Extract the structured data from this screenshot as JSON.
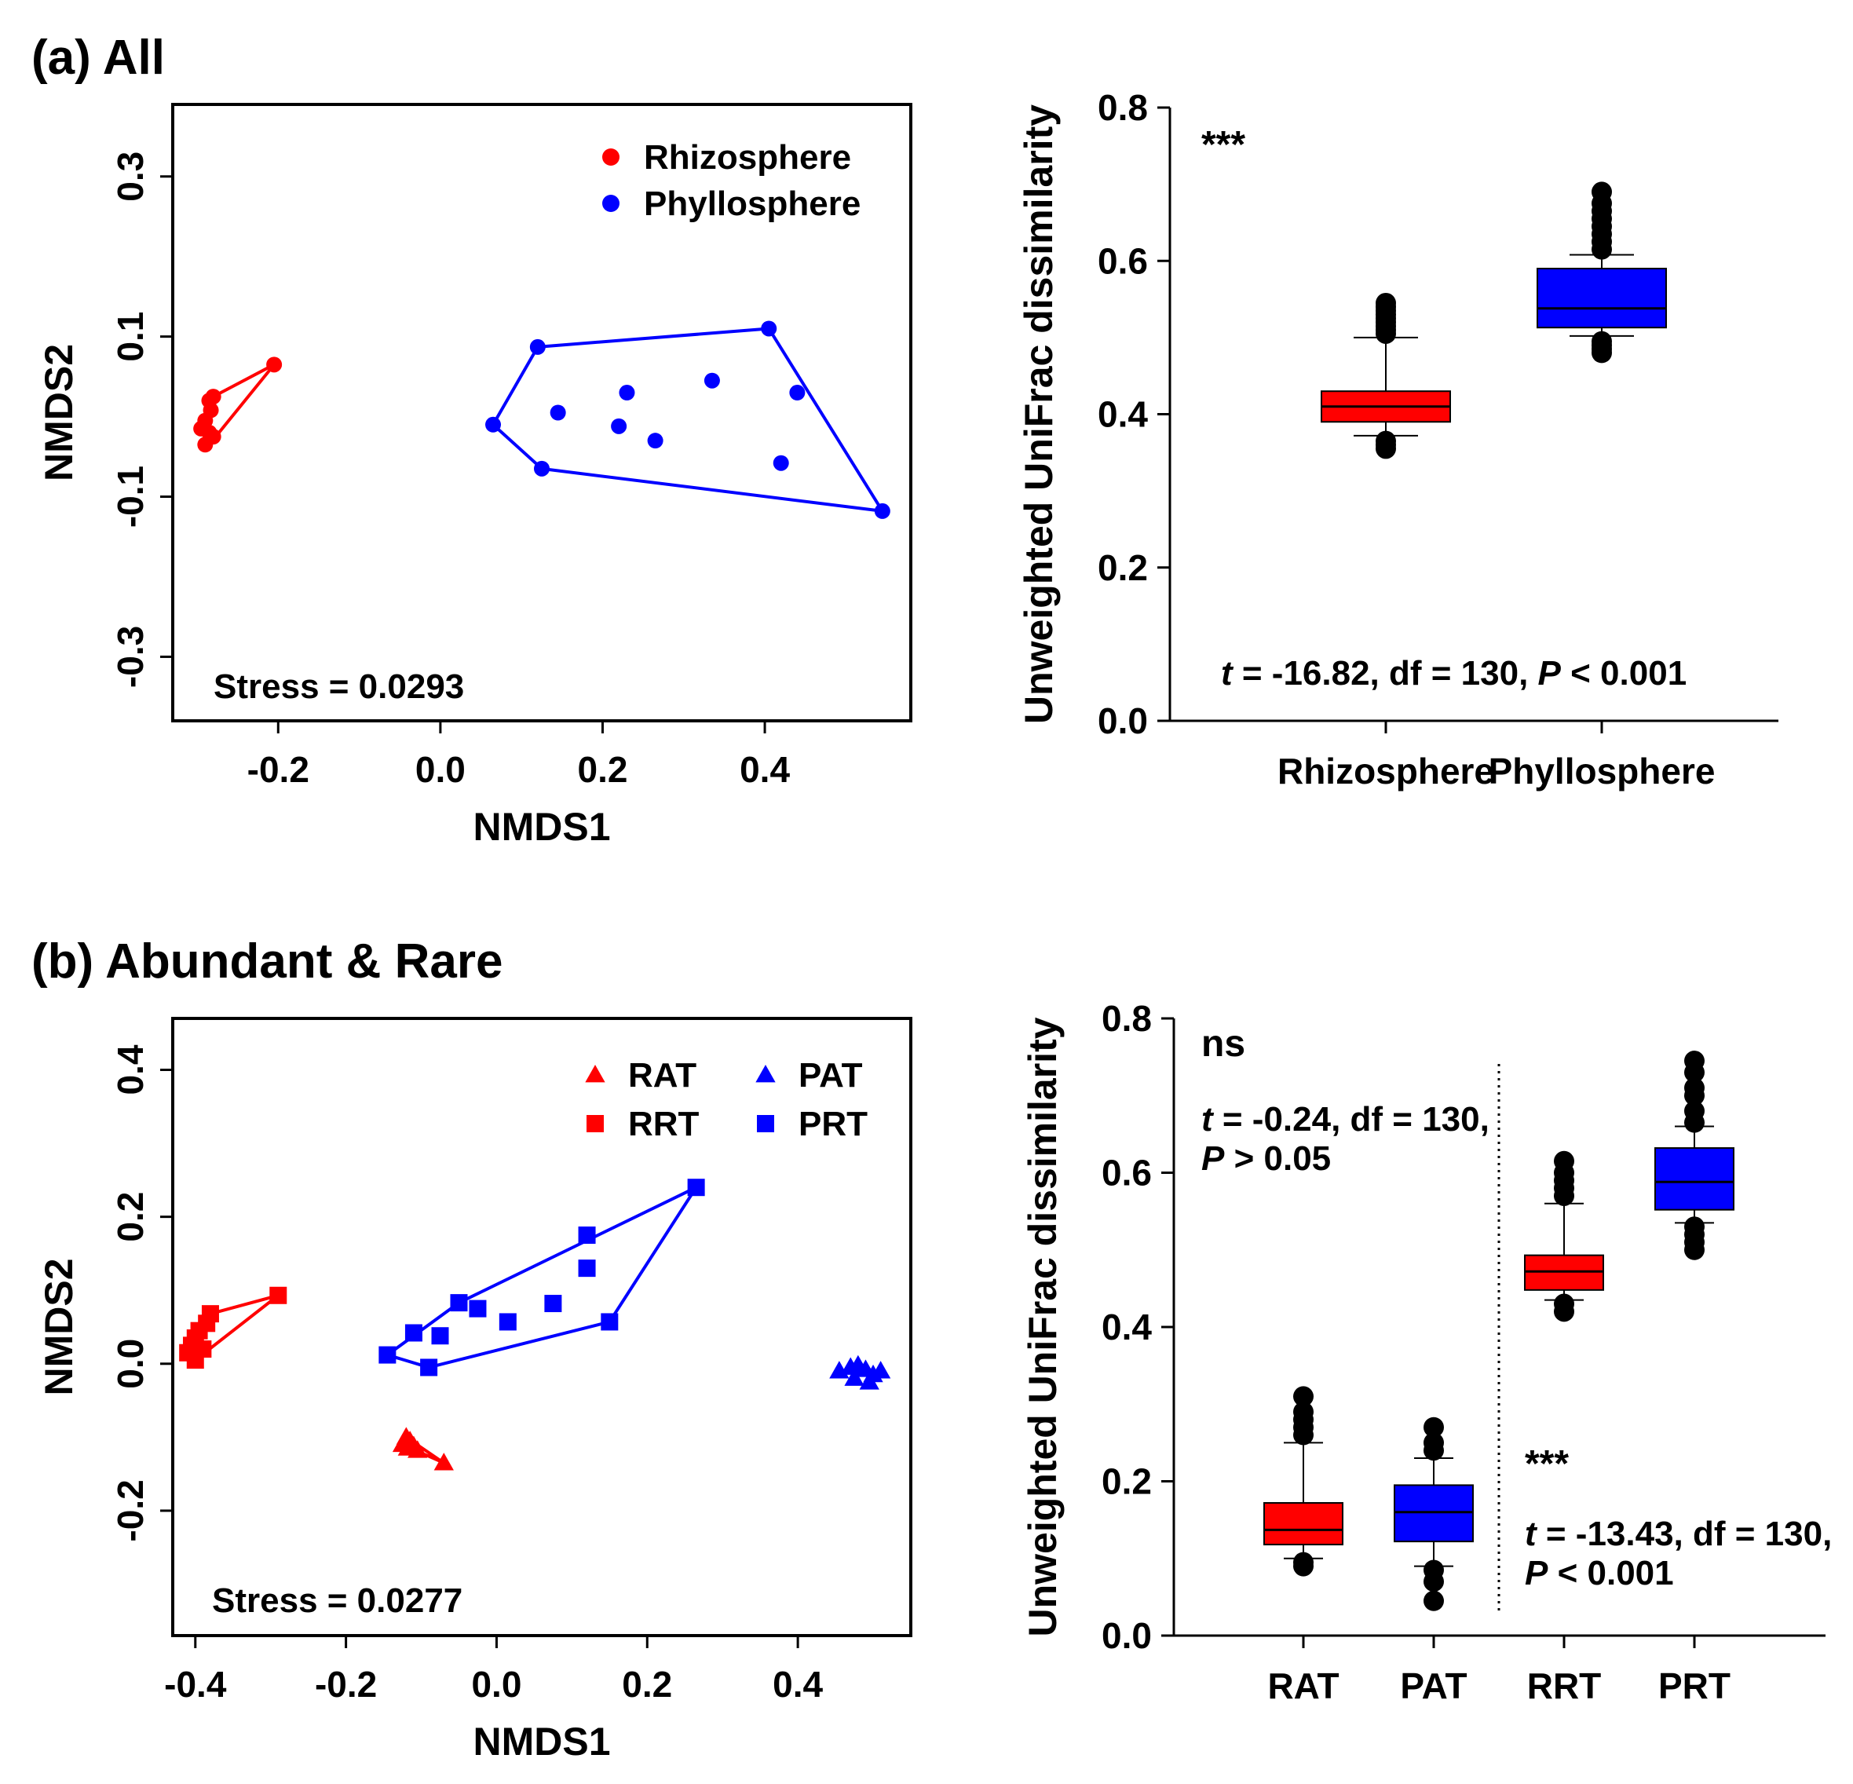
{
  "chart_data": [
    {
      "panel": "(a) All",
      "type": "scatter",
      "xlabel": "NMDS1",
      "ylabel": "NMDS2",
      "xlim": [
        -0.33,
        0.58
      ],
      "ylim": [
        -0.38,
        0.39
      ],
      "xticks": [
        "-0.2",
        "0.0",
        "0.2",
        "0.4"
      ],
      "yticks": [
        "-0.3",
        "-0.1",
        "0.1",
        "0.3"
      ],
      "legend_position": "top-right",
      "annotation": "Stress = 0.0293",
      "series": [
        {
          "name": "Rhizosphere",
          "color": "#ff0000",
          "marker": "circle",
          "x": [
            -0.205,
            -0.28,
            -0.285,
            -0.283,
            -0.29,
            -0.295,
            -0.285,
            -0.28,
            -0.29
          ],
          "y": [
            0.065,
            0.025,
            0.02,
            0.008,
            -0.005,
            -0.015,
            -0.02,
            -0.025,
            -0.035
          ],
          "hull": [
            [
              -0.295,
              -0.015
            ],
            [
              -0.285,
              -0.035
            ],
            [
              -0.205,
              0.065
            ],
            [
              -0.28,
              0.025
            ]
          ]
        },
        {
          "name": "Phyllosphere",
          "color": "#0000ff",
          "marker": "circle",
          "x": [
            0.405,
            0.12,
            0.065,
            0.125,
            0.545,
            0.145,
            0.23,
            0.335,
            0.44,
            0.22,
            0.265,
            0.42
          ],
          "y": [
            0.11,
            0.087,
            -0.01,
            -0.065,
            -0.118,
            0.005,
            0.03,
            0.045,
            0.03,
            -0.012,
            -0.03,
            -0.058
          ],
          "hull": [
            [
              0.405,
              0.11
            ],
            [
              0.12,
              0.087
            ],
            [
              0.065,
              -0.01
            ],
            [
              0.125,
              -0.065
            ],
            [
              0.545,
              -0.118
            ]
          ]
        }
      ]
    },
    {
      "panel": "",
      "type": "box",
      "xlabel": "",
      "ylabel": "Unweighted UniFrac dissimilarity",
      "ylim": [
        0.0,
        0.8
      ],
      "yticks": [
        "0.0",
        "0.2",
        "0.4",
        "0.6",
        "0.8"
      ],
      "categories": [
        "Rhizosphere",
        "Phyllosphere"
      ],
      "significance": "***",
      "stats": [
        "t",
        " = -16.82, df = 130, ",
        "P",
        " < 0.001"
      ],
      "boxes": [
        {
          "name": "Rhizosphere",
          "color": "#ff0000",
          "q1": 0.39,
          "median": 0.41,
          "q3": 0.43,
          "whisker_low": 0.372,
          "whisker_high": 0.5,
          "outliers": [
            0.505,
            0.51,
            0.515,
            0.52,
            0.525,
            0.53,
            0.535,
            0.54,
            0.545,
            0.365,
            0.36,
            0.355
          ]
        },
        {
          "name": "Phyllosphere",
          "color": "#0000ff",
          "q1": 0.513,
          "median": 0.538,
          "q3": 0.59,
          "whisker_low": 0.502,
          "whisker_high": 0.608,
          "outliers": [
            0.615,
            0.625,
            0.635,
            0.645,
            0.655,
            0.665,
            0.675,
            0.69,
            0.495,
            0.49,
            0.485,
            0.48
          ]
        }
      ]
    },
    {
      "panel": "(b) Abundant & Rare",
      "type": "scatter",
      "xlabel": "NMDS1",
      "ylabel": "NMDS2",
      "xlim": [
        -0.43,
        0.55
      ],
      "ylim": [
        -0.37,
        0.47
      ],
      "xticks": [
        "-0.4",
        "-0.2",
        "0.0",
        "0.2",
        "0.4"
      ],
      "yticks": [
        "-0.2",
        "0.0",
        "0.2",
        "0.4"
      ],
      "legend_position": "top-right",
      "annotation": "Stress = 0.0277",
      "series": [
        {
          "name": "RAT",
          "color": "#ff0000",
          "marker": "triangle",
          "x": [
            -0.12,
            -0.115,
            -0.125,
            -0.11,
            -0.118,
            -0.105,
            -0.07
          ],
          "y": [
            -0.1,
            -0.105,
            -0.11,
            -0.112,
            -0.115,
            -0.118,
            -0.135
          ],
          "hull": [
            [
              -0.125,
              -0.11
            ],
            [
              -0.12,
              -0.1
            ],
            [
              -0.07,
              -0.135
            ]
          ]
        },
        {
          "name": "RRT",
          "color": "#ff0000",
          "marker": "square",
          "x": [
            -0.29,
            -0.38,
            -0.385,
            -0.395,
            -0.4,
            -0.405,
            -0.41,
            -0.4,
            -0.39
          ],
          "y": [
            0.093,
            0.068,
            0.055,
            0.045,
            0.035,
            0.025,
            0.015,
            0.005,
            0.02
          ],
          "hull": [
            [
              -0.41,
              0.015
            ],
            [
              -0.4,
              0.005
            ],
            [
              -0.29,
              0.093
            ],
            [
              -0.38,
              0.068
            ],
            [
              -0.41,
              0.025
            ]
          ]
        },
        {
          "name": "PAT",
          "color": "#0000ff",
          "marker": "triangle",
          "x": [
            0.455,
            0.47,
            0.48,
            0.49,
            0.5,
            0.51,
            0.475,
            0.495
          ],
          "y": [
            -0.01,
            -0.005,
            -0.002,
            -0.008,
            -0.015,
            -0.01,
            -0.02,
            -0.025
          ],
          "hull": []
        },
        {
          "name": "PRT",
          "color": "#0000ff",
          "marker": "square",
          "x": [
            0.265,
            0.12,
            0.12,
            0.15,
            -0.05,
            -0.11,
            -0.075,
            -0.145,
            -0.09,
            0.015,
            0.075,
            -0.025
          ],
          "y": [
            0.24,
            0.175,
            0.13,
            0.057,
            0.083,
            0.042,
            0.038,
            0.012,
            -0.005,
            0.057,
            0.082,
            0.075
          ],
          "hull": [
            [
              0.265,
              0.24
            ],
            [
              -0.05,
              0.083
            ],
            [
              -0.145,
              0.012
            ],
            [
              -0.09,
              -0.005
            ],
            [
              0.15,
              0.057
            ]
          ]
        }
      ]
    },
    {
      "panel": "",
      "type": "box",
      "xlabel": "",
      "ylabel": "Unweighted UniFrac dissimilarity",
      "ylim": [
        0.0,
        0.8
      ],
      "yticks": [
        "0.0",
        "0.2",
        "0.4",
        "0.6",
        "0.8"
      ],
      "categories": [
        "RAT",
        "PAT",
        "RRT",
        "PRT"
      ],
      "group_labels": {
        "left_sig": "ns",
        "left_stats_line1": [
          "t",
          " = -0.24, df = 130,"
        ],
        "left_stats_line2": [
          "P",
          " > 0.05"
        ],
        "right_sig": "***",
        "right_stats_line1": [
          "t",
          " = -13.43, df = 130,"
        ],
        "right_stats_line2": [
          "P",
          " < 0.001"
        ]
      },
      "boxes": [
        {
          "name": "RAT",
          "color": "#ff0000",
          "q1": 0.118,
          "median": 0.137,
          "q3": 0.172,
          "whisker_low": 0.1,
          "whisker_high": 0.25,
          "outliers": [
            0.26,
            0.27,
            0.28,
            0.29,
            0.31,
            0.095,
            0.09
          ]
        },
        {
          "name": "PAT",
          "color": "#0000ff",
          "q1": 0.122,
          "median": 0.16,
          "q3": 0.195,
          "whisker_low": 0.09,
          "whisker_high": 0.23,
          "outliers": [
            0.24,
            0.25,
            0.27,
            0.085,
            0.07,
            0.045
          ]
        },
        {
          "name": "RRT",
          "color": "#ff0000",
          "q1": 0.448,
          "median": 0.472,
          "q3": 0.493,
          "whisker_low": 0.435,
          "whisker_high": 0.56,
          "outliers": [
            0.57,
            0.58,
            0.59,
            0.6,
            0.615,
            0.43,
            0.42
          ]
        },
        {
          "name": "PRT",
          "color": "#0000ff",
          "q1": 0.552,
          "median": 0.588,
          "q3": 0.632,
          "whisker_low": 0.535,
          "whisker_high": 0.66,
          "outliers": [
            0.665,
            0.68,
            0.7,
            0.71,
            0.73,
            0.745,
            0.53,
            0.52,
            0.51,
            0.5
          ]
        }
      ]
    }
  ]
}
